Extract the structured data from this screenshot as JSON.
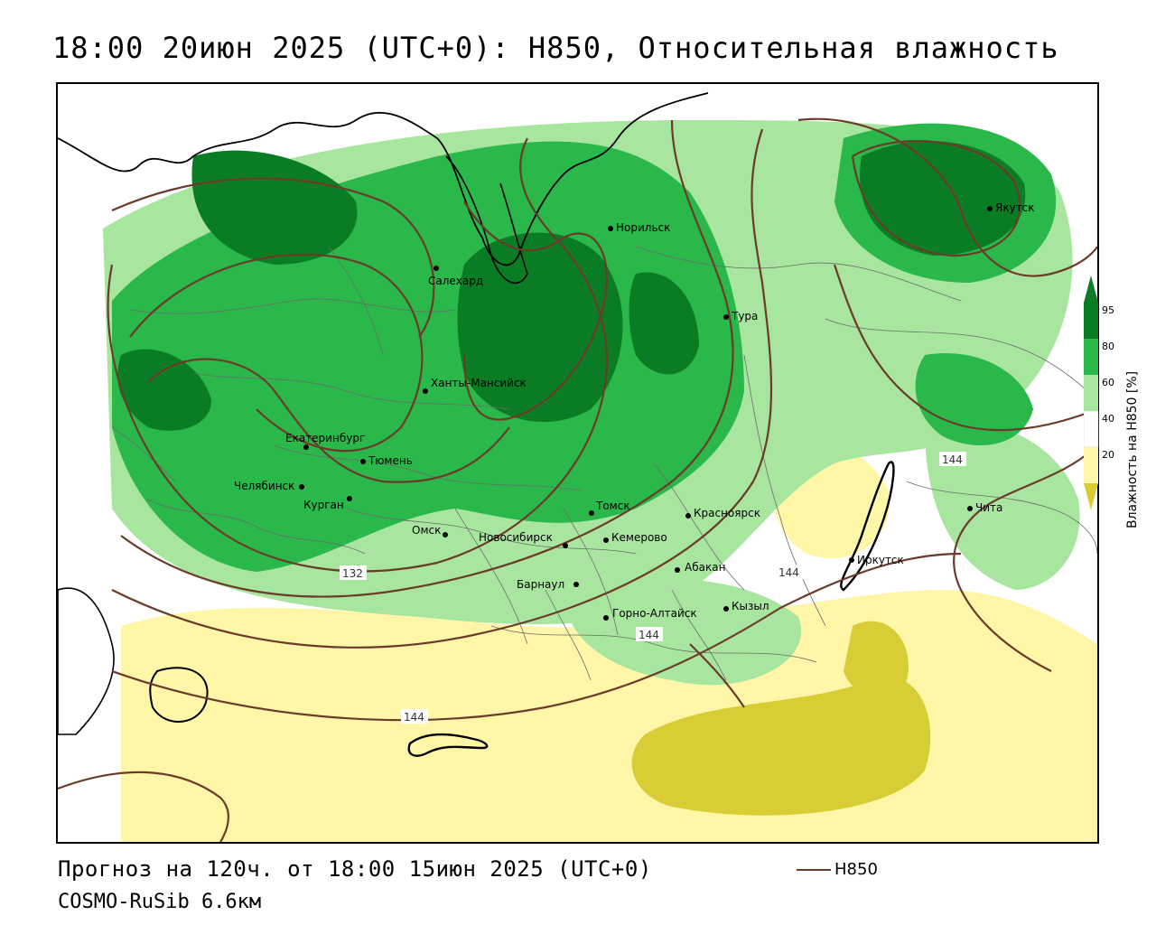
{
  "title": "18:00 20июн 2025 (UTC+0): H850, Относительная влажность",
  "footer": {
    "forecast": "Прогноз на 120ч. от 18:00 15июн 2025 (UTC+0)",
    "model": "COSMO-RuSib 6.6км",
    "contour_legend": "H850"
  },
  "legend": {
    "title": "Влажность на H850 [%]",
    "ticks": [
      "95",
      "80",
      "60",
      "40",
      "20"
    ],
    "colors": {
      "very_high": "#007a1e",
      "high": "#2bb84a",
      "medium": "#a8e6a0",
      "low": "#ffffff",
      "dry": "#fff6a8",
      "very_dry": "#d4c91a"
    }
  },
  "cities": [
    {
      "name": "Норильск"
    },
    {
      "name": "Якутск"
    },
    {
      "name": "Салехард"
    },
    {
      "name": "Тура"
    },
    {
      "name": "Ханты-Мансийск"
    },
    {
      "name": "Екатеринбург"
    },
    {
      "name": "Тюмень"
    },
    {
      "name": "Челябинск"
    },
    {
      "name": "Курган"
    },
    {
      "name": "Омск"
    },
    {
      "name": "Томск"
    },
    {
      "name": "Красноярск"
    },
    {
      "name": "Новосибирск"
    },
    {
      "name": "Кемерово"
    },
    {
      "name": "Абакан"
    },
    {
      "name": "Барнаул"
    },
    {
      "name": "Горно-Алтайск"
    },
    {
      "name": "Кызыл"
    },
    {
      "name": "Иркутск"
    },
    {
      "name": "Чита"
    }
  ],
  "isohypse_labels": [
    "132",
    "144",
    "144",
    "144",
    "144"
  ]
}
